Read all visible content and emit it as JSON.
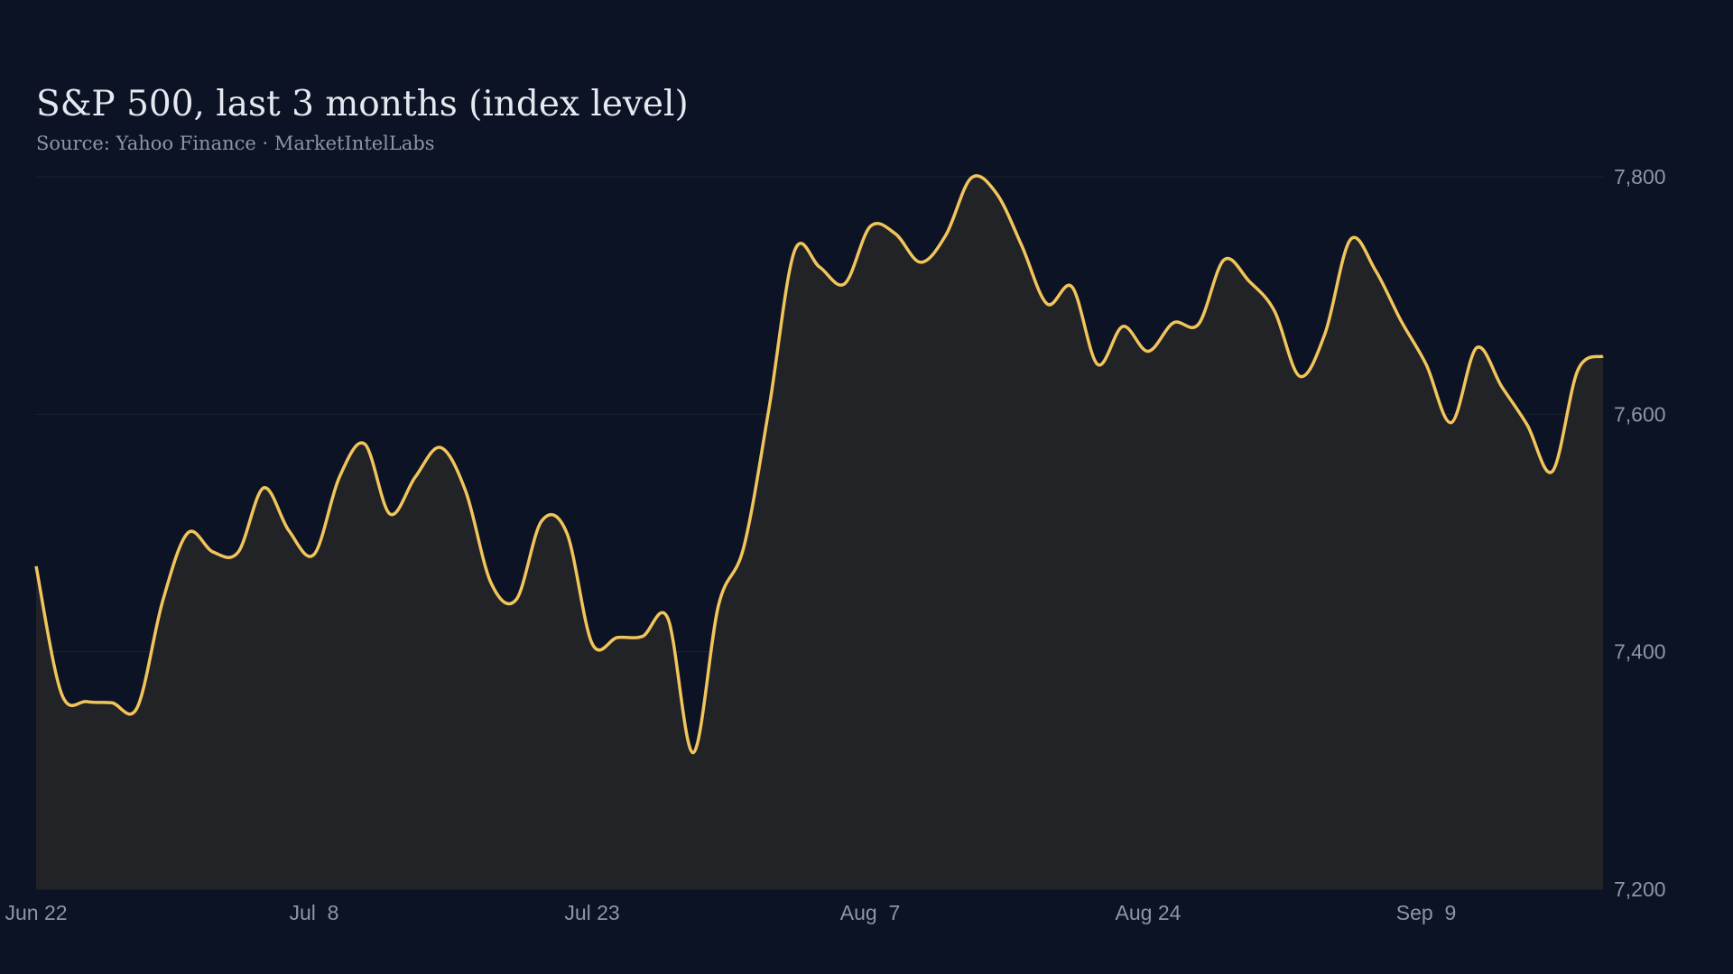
{
  "chart_data": {
    "type": "area-line",
    "title": "S&P 500, last 3 months (index level)",
    "subtitle": "Source: Yahoo Finance · MarketIntelLabs",
    "categories": [
      "Jun 22",
      null,
      null,
      null,
      null,
      null,
      null,
      null,
      null,
      null,
      null,
      "Jul  8",
      null,
      null,
      null,
      null,
      null,
      null,
      null,
      null,
      null,
      null,
      "Jul 23",
      null,
      null,
      null,
      null,
      null,
      null,
      null,
      null,
      null,
      null,
      "Aug  7",
      null,
      null,
      null,
      null,
      null,
      null,
      null,
      null,
      null,
      null,
      "Aug 24",
      null,
      null,
      null,
      null,
      null,
      null,
      null,
      null,
      null,
      null,
      "Sep  9",
      null,
      null,
      null,
      null,
      null,
      null,
      null
    ],
    "values": [
      7472,
      7365,
      7358,
      7357,
      7353,
      7442,
      7500,
      7484,
      7484,
      7538,
      7502,
      7482,
      7547,
      7575,
      7516,
      7547,
      7572,
      7535,
      7458,
      7444,
      7510,
      7500,
      7407,
      7412,
      7413,
      7428,
      7315,
      7439,
      7488,
      7605,
      7737,
      7724,
      7710,
      7758,
      7752,
      7728,
      7751,
      7799,
      7786,
      7742,
      7693,
      7707,
      7642,
      7674,
      7653,
      7677,
      7676,
      7730,
      7712,
      7687,
      7632,
      7668,
      7747,
      7721,
      7679,
      7642,
      7593,
      7656,
      7623,
      7591,
      7552,
      7637,
      7649
    ],
    "color": "#f2c55c",
    "fill_color": "#212327",
    "ylim": [
      7200,
      7800
    ],
    "yticks": [
      {
        "value": 7200,
        "label": "7,200"
      },
      {
        "value": 7400,
        "label": "7,400"
      },
      {
        "value": 7600,
        "label": "7,600"
      },
      {
        "value": 7800,
        "label": "7,800"
      }
    ],
    "grid": true
  }
}
